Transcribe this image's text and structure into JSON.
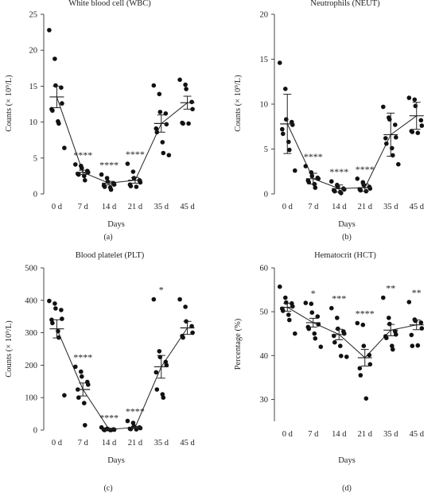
{
  "chart_data": [
    {
      "type": "scatter",
      "title": "White blood cell (WBC)",
      "xlabel": "Days",
      "ylabel": "Counts (× 10⁹/L)",
      "panel_label": "(a)",
      "categories": [
        "0 d",
        "7 d",
        "14 d",
        "21 d",
        "35 d",
        "45 d"
      ],
      "ylim": [
        0,
        25
      ],
      "yticks": [
        "0",
        "5",
        "10",
        "15",
        "20",
        "25"
      ],
      "points": [
        [
          22.8,
          18.8,
          15.1,
          14.8,
          12.6,
          11.8,
          11.6,
          10.1,
          9.8,
          6.4
        ],
        [
          4.1,
          3.9,
          3.6,
          3.2,
          3.0,
          2.8,
          2.7,
          2.5,
          1.9
        ],
        [
          2.7,
          2.2,
          1.7,
          1.5,
          1.3,
          1.2,
          1.0,
          0.9,
          0.6
        ],
        [
          4.2,
          3.1,
          2.2,
          1.9,
          1.6,
          1.3,
          1.1,
          1.0
        ],
        [
          15.1,
          13.9,
          11.4,
          11.2,
          9.7,
          9.1,
          8.6,
          7.2,
          5.7,
          5.4
        ],
        [
          15.9,
          15.2,
          14.6,
          12.8,
          11.8,
          9.9,
          9.8,
          9.8
        ]
      ],
      "mean": [
        13.5,
        3.0,
        1.5,
        1.9,
        9.8,
        12.7
      ],
      "sem": [
        1.5,
        0.3,
        0.25,
        0.4,
        1.2,
        0.9
      ],
      "significance": [
        "",
        "****",
        "****",
        "****",
        "",
        ""
      ]
    },
    {
      "type": "scatter",
      "title": "Neutrophils (NEUT)",
      "xlabel": "Days",
      "ylabel": "Counts (× 10⁹/L)",
      "panel_label": "(b)",
      "categories": [
        "0 d",
        "7 d",
        "14 d",
        "21 d",
        "35 d",
        "45 d"
      ],
      "ylim": [
        0,
        20
      ],
      "yticks": [
        "0",
        "5",
        "10",
        "15",
        "20"
      ],
      "points": [
        [
          14.6,
          11.7,
          8.3,
          8.0,
          7.7,
          7.2,
          6.7,
          5.8,
          4.9,
          2.6
        ],
        [
          3.1,
          2.4,
          2.0,
          1.8,
          1.7,
          1.5,
          1.3,
          1.1,
          0.7
        ],
        [
          1.4,
          1.0,
          0.8,
          0.6,
          0.5,
          0.4,
          0.3,
          0.2,
          0.1
        ],
        [
          1.7,
          1.3,
          1.0,
          0.8,
          0.6,
          0.5,
          0.4,
          0.3
        ],
        [
          9.7,
          8.5,
          8.3,
          7.7,
          6.3,
          6.2,
          5.6,
          5.1,
          4.3,
          3.3
        ],
        [
          10.7,
          10.5,
          9.8,
          8.2,
          7.6,
          7.0,
          6.9,
          6.8
        ]
      ],
      "mean": [
        7.8,
        1.7,
        0.6,
        0.7,
        6.6,
        8.7
      ],
      "sem": [
        3.3,
        0.6,
        0.4,
        0.4,
        2.4,
        1.5
      ],
      "significance": [
        "",
        "****",
        "****",
        "****",
        "",
        ""
      ]
    },
    {
      "type": "scatter",
      "title": "Blood platelet (PLT)",
      "xlabel": "Days",
      "ylabel": "Counts (× 10⁹/L)",
      "panel_label": "(c)",
      "categories": [
        "0 d",
        "7 d",
        "14 d",
        "21 d",
        "35 d",
        "45 d"
      ],
      "ylim": [
        0,
        500
      ],
      "yticks": [
        "0",
        "100",
        "200",
        "300",
        "400",
        "500"
      ],
      "points": [
        [
          398,
          390,
          375,
          370,
          343,
          340,
          330,
          305,
          285,
          107
        ],
        [
          195,
          180,
          165,
          148,
          140,
          125,
          100,
          83,
          15
        ],
        [
          8,
          4,
          3,
          2,
          1,
          1,
          0,
          0,
          0
        ],
        [
          28,
          22,
          12,
          8,
          6,
          4,
          3,
          2
        ],
        [
          403,
          243,
          225,
          210,
          200,
          178,
          125,
          110,
          100
        ],
        [
          403,
          380,
          335,
          320,
          300,
          290,
          285
        ]
      ],
      "mean": [
        312,
        125,
        2,
        8,
        195,
        315
      ],
      "sem": [
        28,
        20,
        1,
        3,
        35,
        20
      ],
      "significance": [
        "",
        "****",
        "****",
        "****",
        "*",
        ""
      ]
    },
    {
      "type": "scatter",
      "title": "Hematocrit (HCT)",
      "xlabel": "Days",
      "ylabel": "Percentage (%)",
      "panel_label": "(d)",
      "categories": [
        "0 d",
        "7 d",
        "14 d",
        "21 d",
        "35 d",
        "45 d"
      ],
      "ylim": [
        25,
        60
      ],
      "yticks": [
        "30",
        "40",
        "50",
        "60"
      ],
      "points": [
        [
          55.7,
          53.2,
          52.1,
          51.9,
          51.2,
          50.7,
          50.2,
          49.3,
          48.1,
          45.0
        ],
        [
          52.0,
          51.8,
          49.8,
          48.9,
          47.1,
          46.5,
          46.1,
          45.0,
          43.9,
          42.0
        ],
        [
          50.8,
          48.6,
          46.1,
          45.5,
          45.0,
          44.5,
          43.0,
          42.2,
          39.9,
          39.7
        ],
        [
          47.4,
          47.0,
          42.2,
          40.1,
          38.0,
          37.1,
          35.5,
          30.2
        ],
        [
          53.2,
          48.6,
          47.2,
          45.5,
          44.8,
          44.4,
          44.0,
          42.2,
          41.4
        ],
        [
          52.2,
          48.2,
          47.9,
          47.5,
          46.2,
          44.7,
          42.2,
          42.3
        ]
      ],
      "mean": [
        51.0,
        47.5,
        44.8,
        39.5,
        45.8,
        47.0
      ],
      "sem": [
        0.9,
        1.0,
        1.2,
        1.9,
        1.3,
        1.1
      ],
      "significance": [
        "",
        "*",
        "***",
        "****",
        "**",
        "**"
      ]
    }
  ]
}
